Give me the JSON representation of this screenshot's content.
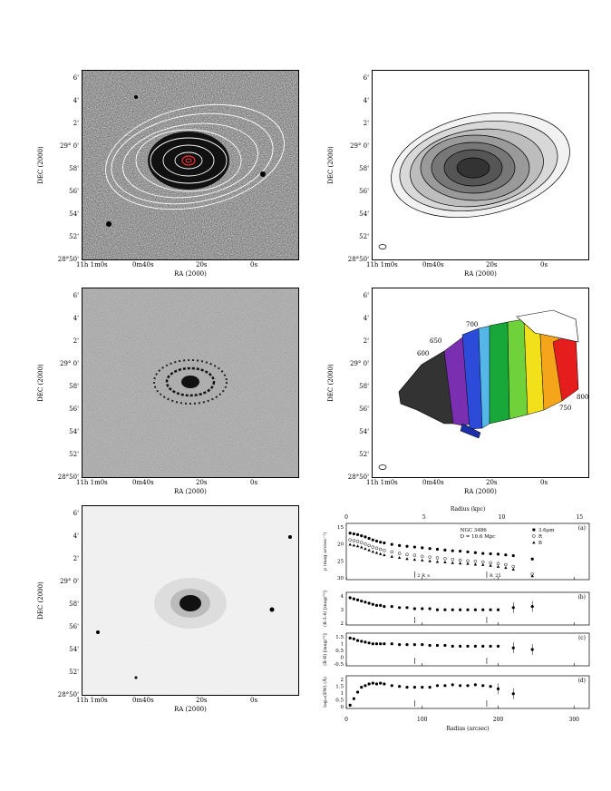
{
  "panels": {
    "common": {
      "dec_ticks": [
        "6'",
        "4'",
        "2'",
        "29° 0'",
        "58'",
        "56'",
        "54'",
        "52'",
        "28°50'"
      ],
      "ra_ticks": [
        "11h 1m0s",
        "0m40s",
        "20s",
        "0s"
      ],
      "ra_label": "RA (2000)",
      "dec_label": "DEC (2000)"
    },
    "vel_contours": [
      "600",
      "650",
      "700",
      "750",
      "800"
    ]
  },
  "plot": {
    "top_axis_label": "Radius (kpc)",
    "top_ticks": [
      "0",
      "5",
      "10",
      "15"
    ],
    "bottom_axis_label": "Radius (arcsec)",
    "bottom_ticks": [
      "0",
      "100",
      "200",
      "300"
    ],
    "legend": {
      "name": "NGC 3486",
      "distance": "D = 10.6 Mpc",
      "s1": "3.6μm",
      "s2": "R",
      "s3": "B"
    },
    "a": {
      "tag": "(a)",
      "ylabel": "μ (mag arcsec⁻²)",
      "ticks": [
        "15",
        "20",
        "25",
        "30"
      ],
      "ann1": "2 R_s",
      "ann2": "R_25"
    },
    "b": {
      "tag": "(b)",
      "ylabel": "(B-3.6) [mag/\"²]",
      "ticks": [
        "4",
        "3",
        "2"
      ]
    },
    "c": {
      "tag": "(c)",
      "ylabel": "(B-R) [mag/\"²]",
      "ticks": [
        "1.5",
        "1",
        "0.5",
        "0",
        "-0.5"
      ]
    },
    "d": {
      "tag": "(d)",
      "ylabel": "log₁₀(EW) (Å)",
      "ticks": [
        "2",
        "1.5",
        "1",
        "0.5",
        "0"
      ]
    }
  },
  "chart_data": [
    {
      "type": "scatter",
      "title": "",
      "xlabel": "",
      "ylabel": "μ (mag arcsec⁻²)",
      "xlim": [
        0,
        320
      ],
      "ylim": [
        30,
        15
      ],
      "series": [
        {
          "name": "3.6μm",
          "x": [
            5,
            10,
            15,
            20,
            25,
            30,
            35,
            40,
            45,
            50,
            60,
            70,
            80,
            90,
            100,
            110,
            120,
            130,
            140,
            150,
            160,
            170,
            180,
            190,
            200,
            210,
            220,
            245
          ],
          "y": [
            17.6,
            17.8,
            18.0,
            18.3,
            18.6,
            19.0,
            19.4,
            19.7,
            20.0,
            20.2,
            20.6,
            20.9,
            21.1,
            21.3,
            21.5,
            21.7,
            21.9,
            22.1,
            22.3,
            22.4,
            22.6,
            22.8,
            23.0,
            23.1,
            23.2,
            23.4,
            23.6,
            24.5
          ]
        },
        {
          "name": "R",
          "x": [
            5,
            10,
            15,
            20,
            25,
            30,
            35,
            40,
            45,
            50,
            60,
            70,
            80,
            90,
            100,
            110,
            120,
            130,
            140,
            150,
            160,
            170,
            180,
            190,
            200,
            210,
            220,
            245
          ],
          "y": [
            19.4,
            19.6,
            19.8,
            20.1,
            20.5,
            20.9,
            21.3,
            21.6,
            21.9,
            22.2,
            22.6,
            23.0,
            23.3,
            23.5,
            23.8,
            24.0,
            24.2,
            24.4,
            24.6,
            24.8,
            25.0,
            25.1,
            25.3,
            25.5,
            25.7,
            26.0,
            26.5,
            28.5
          ]
        },
        {
          "name": "B",
          "x": [
            5,
            10,
            15,
            20,
            25,
            30,
            35,
            40,
            45,
            50,
            60,
            70,
            80,
            90,
            100,
            110,
            120,
            130,
            140,
            150,
            160,
            170,
            180,
            190,
            200,
            210,
            220,
            245
          ],
          "y": [
            20.6,
            20.8,
            21.0,
            21.3,
            21.7,
            22.1,
            22.5,
            22.8,
            23.1,
            23.4,
            23.8,
            24.1,
            24.4,
            24.6,
            24.8,
            25.0,
            25.2,
            25.3,
            25.5,
            25.6,
            25.7,
            25.9,
            26.0,
            26.2,
            26.5,
            26.8,
            27.2,
            29.0
          ]
        }
      ]
    },
    {
      "type": "scatter",
      "ylabel": "(B-3.6) [mag/\"²]",
      "xlim": [
        0,
        320
      ],
      "ylim": [
        1.5,
        4.5
      ],
      "series": [
        {
          "name": "",
          "x": [
            5,
            10,
            15,
            20,
            25,
            30,
            35,
            40,
            45,
            50,
            60,
            70,
            80,
            90,
            100,
            110,
            120,
            130,
            140,
            150,
            160,
            170,
            180,
            190,
            200,
            220,
            245
          ],
          "y": [
            4.0,
            3.9,
            3.8,
            3.7,
            3.6,
            3.5,
            3.4,
            3.3,
            3.3,
            3.2,
            3.2,
            3.1,
            3.1,
            3.0,
            3.0,
            3.0,
            2.9,
            2.9,
            2.9,
            2.9,
            2.9,
            2.9,
            2.9,
            2.9,
            2.9,
            3.1,
            3.2
          ]
        }
      ]
    },
    {
      "type": "scatter",
      "ylabel": "(B-R) [mag/\"²]",
      "xlim": [
        0,
        320
      ],
      "ylim": [
        -0.5,
        1.5
      ],
      "series": [
        {
          "name": "",
          "x": [
            5,
            10,
            15,
            20,
            25,
            30,
            35,
            40,
            45,
            50,
            60,
            70,
            80,
            90,
            100,
            110,
            120,
            130,
            140,
            150,
            160,
            170,
            180,
            190,
            200,
            220,
            245
          ],
          "y": [
            1.2,
            1.15,
            1.05,
            1.0,
            0.95,
            0.9,
            0.85,
            0.85,
            0.85,
            0.85,
            0.85,
            0.8,
            0.8,
            0.8,
            0.8,
            0.75,
            0.75,
            0.75,
            0.7,
            0.7,
            0.7,
            0.7,
            0.7,
            0.7,
            0.7,
            0.6,
            0.5
          ]
        }
      ]
    },
    {
      "type": "scatter",
      "xlabel": "Radius (arcsec)",
      "ylabel": "log₁₀(EW) (Å)",
      "xlim": [
        0,
        320
      ],
      "ylim": [
        0,
        2
      ],
      "series": [
        {
          "name": "",
          "x": [
            5,
            10,
            15,
            20,
            25,
            30,
            35,
            40,
            45,
            50,
            60,
            70,
            80,
            90,
            100,
            110,
            120,
            130,
            140,
            150,
            160,
            170,
            180,
            190,
            200,
            220
          ],
          "y": [
            0.2,
            0.6,
            1.0,
            1.3,
            1.4,
            1.5,
            1.55,
            1.5,
            1.55,
            1.5,
            1.4,
            1.35,
            1.3,
            1.3,
            1.3,
            1.3,
            1.4,
            1.4,
            1.45,
            1.4,
            1.4,
            1.45,
            1.4,
            1.35,
            1.2,
            0.9
          ]
        }
      ]
    }
  ]
}
